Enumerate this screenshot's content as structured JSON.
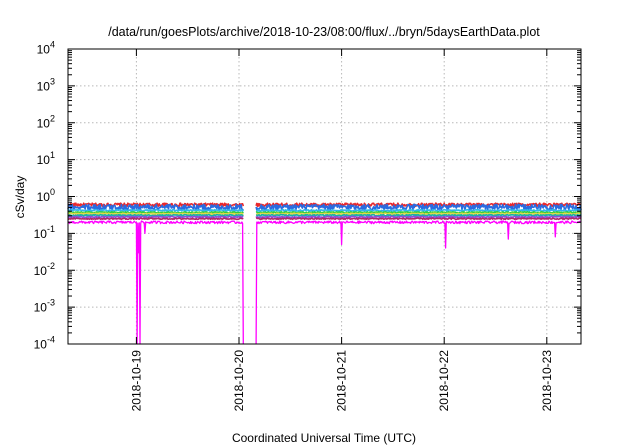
{
  "chart_data": {
    "type": "line",
    "title": "/data/run/goesPlots/archive/2018-10-23/08:00/flux/../bryn/5daysEarthData.plot",
    "xlabel": "Coordinated Universal Time (UTC)",
    "ylabel": "cSv/day",
    "yscale": "log",
    "ylim": [
      0.0001,
      10000
    ],
    "y_ticks": [
      {
        "value": 0.0001,
        "base": "10",
        "exp": "-4"
      },
      {
        "value": 0.001,
        "base": "10",
        "exp": "-3"
      },
      {
        "value": 0.01,
        "base": "10",
        "exp": "-2"
      },
      {
        "value": 0.1,
        "base": "10",
        "exp": "-1"
      },
      {
        "value": 1,
        "base": "10",
        "exp": "0"
      },
      {
        "value": 10,
        "base": "10",
        "exp": "1"
      },
      {
        "value": 100,
        "base": "10",
        "exp": "2"
      },
      {
        "value": 1000,
        "base": "10",
        "exp": "3"
      },
      {
        "value": 10000,
        "base": "10",
        "exp": "4"
      }
    ],
    "xlim": [
      "2018-10-18T08:00",
      "2018-10-23T08:00"
    ],
    "x_ticks": [
      "2018-10-19",
      "2018-10-20",
      "2018-10-21",
      "2018-10-22",
      "2018-10-23"
    ],
    "grid": true,
    "data_gap": [
      "2018-10-20T01:00",
      "2018-10-20T04:00"
    ],
    "series": [
      {
        "color": "#e8282d",
        "level": 0.6,
        "noise": 0.1
      },
      {
        "color": "#2a6be0",
        "level": 0.52,
        "noise": 0.18
      },
      {
        "color": "#2fb8e8",
        "level": 0.42,
        "noise": 0.05
      },
      {
        "color": "#34d03a",
        "level": 0.37,
        "noise": 0.04
      },
      {
        "color": "#e2d84a",
        "level": 0.34,
        "noise": 0.04
      },
      {
        "color": "#19b0a6",
        "level": 0.31,
        "noise": 0.04
      },
      {
        "color": "#8c4fd8",
        "level": 0.28,
        "noise": 0.04
      },
      {
        "color": "#b0286a",
        "level": 0.25,
        "noise": 0.04
      },
      {
        "color": "#ff00ff",
        "level": 0.2,
        "noise": 0.08,
        "dropouts": [
          {
            "t": "2018-10-19T00:10",
            "value": 0.0001
          },
          {
            "t": "2018-10-19T00:50",
            "value": 0.0001
          },
          {
            "t": "2018-10-20T01:00",
            "value": 0.0001
          },
          {
            "t": "2018-10-20T04:00",
            "value": 0.0001
          }
        ],
        "dips": [
          {
            "t": "2018-10-19T00:30",
            "value": 0.03
          },
          {
            "t": "2018-10-21T00:00",
            "value": 0.05
          },
          {
            "t": "2018-10-22T00:20",
            "value": 0.04
          },
          {
            "t": "2018-10-22T15:00",
            "value": 0.07
          },
          {
            "t": "2018-10-19T02:00",
            "value": 0.1
          },
          {
            "t": "2018-10-23T02:00",
            "value": 0.08
          }
        ]
      }
    ]
  }
}
